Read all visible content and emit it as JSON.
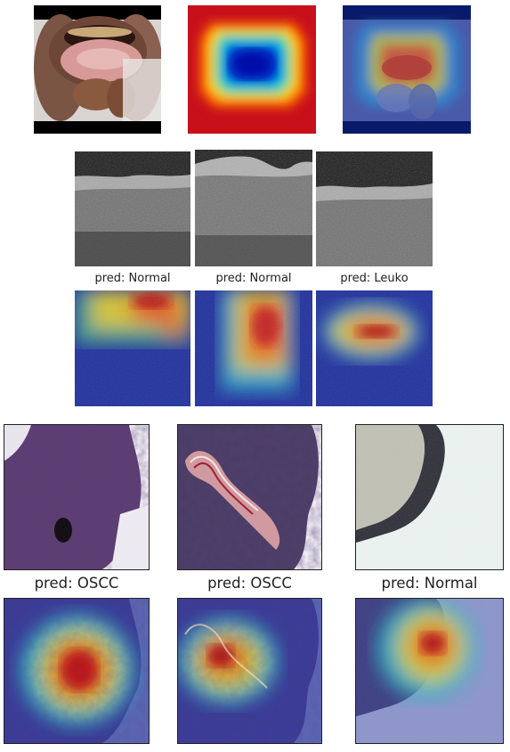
{
  "oral_photo_row": {
    "panels": [
      "oral-photo",
      "oral-heatmap",
      "oral-overlay"
    ]
  },
  "oct_row": {
    "predictions": [
      "pred: Normal",
      "pred: Normal",
      "pred: Leuko"
    ]
  },
  "histology_row": {
    "predictions": [
      "pred: OSCC",
      "pred: OSCC",
      "pred: Normal"
    ]
  }
}
